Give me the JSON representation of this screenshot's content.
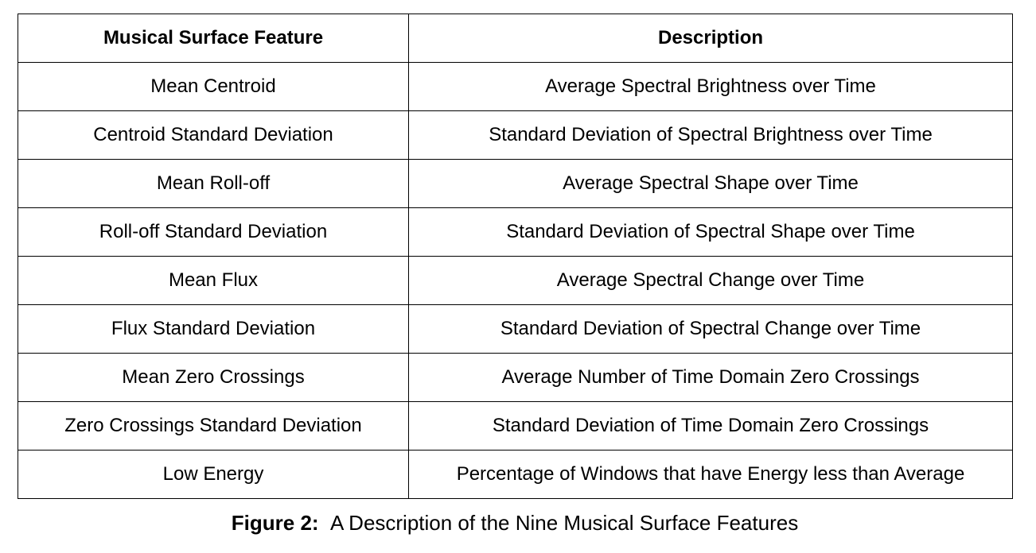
{
  "table": {
    "headers": [
      "Musical Surface Feature",
      "Description"
    ],
    "rows": [
      [
        "Mean Centroid",
        "Average Spectral Brightness over Time"
      ],
      [
        "Centroid Standard Deviation",
        "Standard Deviation of Spectral Brightness over Time"
      ],
      [
        "Mean Roll-off",
        "Average Spectral Shape over Time"
      ],
      [
        "Roll-off Standard Deviation",
        "Standard Deviation of Spectral Shape over Time"
      ],
      [
        "Mean Flux",
        "Average Spectral Change over Time"
      ],
      [
        "Flux Standard Deviation",
        "Standard Deviation of Spectral Change over Time"
      ],
      [
        "Mean Zero Crossings",
        "Average Number of Time Domain Zero Crossings"
      ],
      [
        "Zero Crossings Standard Deviation",
        "Standard Deviation of Time Domain Zero Crossings"
      ],
      [
        "Low Energy",
        "Percentage of Windows that have Energy less than Average"
      ]
    ]
  },
  "caption": {
    "label": "Figure 2:",
    "text": "A Description of the Nine Musical Surface Features"
  }
}
